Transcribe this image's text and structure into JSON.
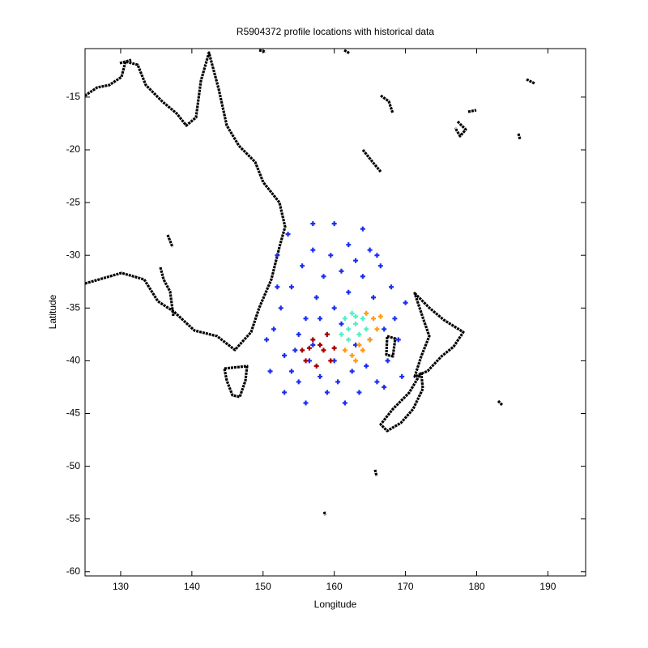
{
  "chart_data": {
    "type": "scatter",
    "title": "R5904372 profile locations with historical data",
    "x_label": "Longitude",
    "y_label": "Latitude",
    "xlim": [
      125,
      195.3
    ],
    "ylim": [
      -60.4,
      -10.4
    ],
    "xticks": [
      130,
      140,
      150,
      160,
      170,
      180,
      190
    ],
    "yticks": [
      -15,
      -20,
      -25,
      -30,
      -35,
      -40,
      -45,
      -50,
      -55,
      -60
    ],
    "series": [
      {
        "color": "#1a2ef0",
        "x": [
          150.5,
          151,
          152,
          152.5,
          153,
          153.5,
          154,
          154.5,
          155,
          155.5,
          156,
          156,
          157,
          157,
          157.5,
          158,
          158.5,
          159,
          159.5,
          160,
          160,
          160.5,
          161,
          161.5,
          162,
          162,
          162.5,
          163,
          163.5,
          164,
          164.5,
          165,
          165.5,
          166,
          166.5,
          167,
          167.5,
          168,
          168.5,
          169,
          169.5,
          170,
          151.5,
          153,
          155,
          157,
          159,
          163,
          165,
          167,
          161,
          158,
          156.5,
          154,
          152,
          166,
          164,
          160
        ],
        "y": [
          -38,
          -41,
          -30,
          -35,
          -43,
          -28,
          -33,
          -39,
          -42,
          -31,
          -36,
          -44,
          -27,
          -29.5,
          -34,
          -41.5,
          -32,
          -43,
          -30,
          -35,
          -27,
          -42,
          -31.5,
          -44,
          -29,
          -33.5,
          -41,
          -30.5,
          -43,
          -32,
          -40.5,
          -29.5,
          -34,
          -42,
          -31,
          -37,
          -40,
          -33,
          -36,
          -38,
          -41.5,
          -34.5,
          -37,
          -39.5,
          -37.5,
          -38.5,
          -37.5,
          -38.5,
          -38,
          -42.5,
          -36.5,
          -36,
          -40,
          -41,
          -33,
          -30,
          -27.5,
          -40
        ]
      },
      {
        "color": "#4ff0c4",
        "x": [
          161.5,
          162,
          162.5,
          163,
          163.5,
          164,
          162,
          161,
          163,
          164.5
        ],
        "y": [
          -36,
          -37,
          -35.5,
          -36.5,
          -37.5,
          -36,
          -38,
          -37.5,
          -35.8,
          -37
        ]
      },
      {
        "color": "#ff9a10",
        "x": [
          164.5,
          165.5,
          166,
          165,
          164,
          162.5,
          161.5,
          163.5,
          166.5,
          163
        ],
        "y": [
          -35.5,
          -36,
          -37,
          -38,
          -39,
          -39.5,
          -39,
          -38.5,
          -35.8,
          -40
        ]
      },
      {
        "color": "#a80000",
        "x": [
          155.5,
          156,
          157,
          157.5,
          158.5,
          159,
          159.5,
          158,
          156.5,
          160
        ],
        "y": [
          -39,
          -40,
          -38,
          -40.5,
          -39,
          -37.5,
          -40,
          -38.5,
          -38.8,
          -38.8
        ]
      }
    ]
  }
}
